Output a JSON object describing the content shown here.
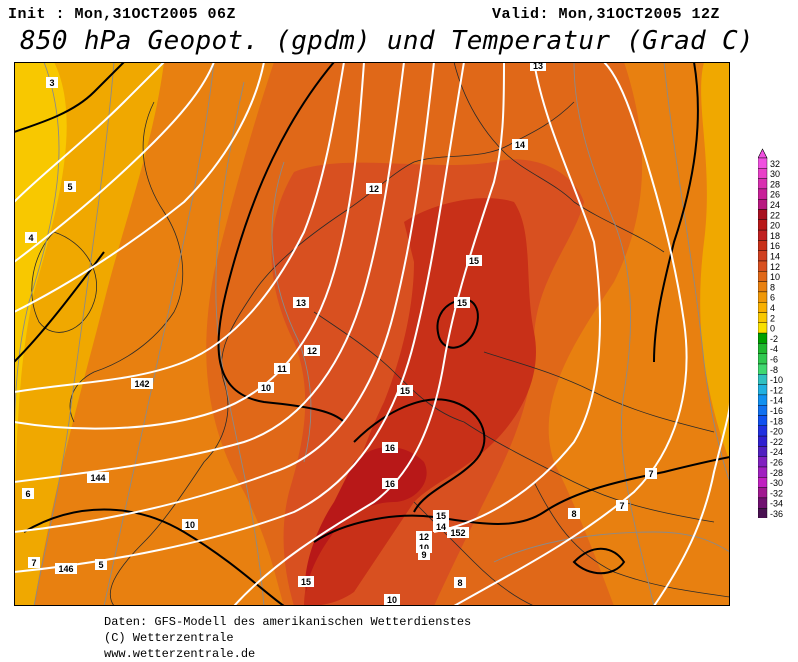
{
  "header": {
    "init": "Init : Mon,31OCT2005 06Z",
    "valid": "Valid: Mon,31OCT2005 12Z",
    "title": "850 hPa Geopot. (gpdm) und Temperatur (Grad C)"
  },
  "credits": {
    "line1": "Daten: GFS-Modell des amerikanischen Wetterdienstes",
    "line2": "(C) Wetterzentrale",
    "line3": "www.wetterzentrale.de"
  },
  "colors": {
    "frame": "#000000",
    "geopotential": "#ffffff",
    "isotherm_thick": "#000000",
    "isotherm_thin": "#8a8a8a",
    "coast": "#2a2a2a"
  },
  "scale": {
    "labels": [
      "32",
      "30",
      "28",
      "26",
      "24",
      "22",
      "20",
      "18",
      "16",
      "14",
      "12",
      "10",
      "8",
      "6",
      "4",
      "2",
      "0",
      "-2",
      "-4",
      "-6",
      "-8",
      "-10",
      "-12",
      "-14",
      "-16",
      "-18",
      "-20",
      "-22",
      "-24",
      "-26",
      "-28",
      "-30",
      "-32",
      "-34",
      "-36"
    ],
    "colors": [
      "#f050e0",
      "#e840c8",
      "#d830b0",
      "#c82098",
      "#b81880",
      "#a81020",
      "#b81818",
      "#c02020",
      "#c83018",
      "#d04020",
      "#d85020",
      "#e06818",
      "#e88010",
      "#f09808",
      "#f8b000",
      "#f8c800",
      "#f8e000",
      "#00a000",
      "#20b830",
      "#30c850",
      "#40d870",
      "#30c0c0",
      "#20b0e0",
      "#1090f0",
      "#1070f0",
      "#1050f0",
      "#2030e0",
      "#3020d0",
      "#5020c0",
      "#8020c0",
      "#a020c0",
      "#c020c0",
      "#a01890",
      "#701070",
      "#481050"
    ]
  },
  "map_labels": {
    "temperature": [
      "3",
      "5",
      "4",
      "13",
      "14",
      "12",
      "15",
      "15",
      "13",
      "12",
      "11",
      "10",
      "15",
      "16",
      "16",
      "15",
      "14",
      "12",
      "10",
      "9",
      "8",
      "7",
      "7",
      "8",
      "10",
      "10",
      "15",
      "5",
      "7",
      "6"
    ],
    "geopotential": [
      "142",
      "144",
      "146",
      "152"
    ]
  }
}
